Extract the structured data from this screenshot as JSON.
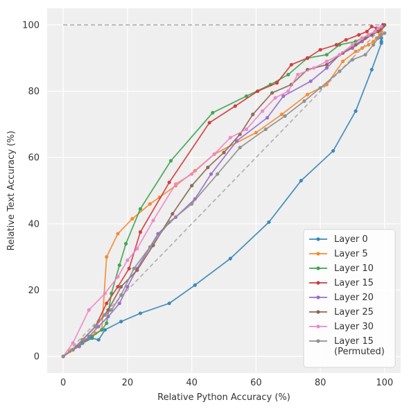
{
  "chart_data": {
    "type": "line",
    "xlabel": "Relative Python Accuracy (%)",
    "ylabel": "Relative Text Accuracy (%)",
    "xlim": [
      -5,
      105
    ],
    "ylim": [
      -5,
      105
    ],
    "xticks": [
      0,
      20,
      40,
      60,
      80,
      100
    ],
    "yticks": [
      0,
      20,
      40,
      60,
      80,
      100
    ],
    "grid": true,
    "legend_position": "bottom-right",
    "reference_lines": [
      {
        "style": "dashed",
        "color": "#b3b3b3",
        "x": [
          0,
          100
        ],
        "y": [
          100,
          100
        ]
      },
      {
        "style": "dashed",
        "color": "#b3b3b3",
        "x": [
          0,
          100
        ],
        "y": [
          0,
          100
        ]
      }
    ],
    "series": [
      {
        "name": "Layer 0",
        "color": "#3a86b8",
        "x": [
          0,
          3,
          6,
          9,
          11,
          13,
          18,
          24,
          33,
          41,
          52,
          64,
          74,
          84,
          91,
          96,
          99,
          99,
          99
        ],
        "y": [
          0,
          2,
          4,
          5.5,
          5,
          8,
          10.5,
          13,
          16,
          21.5,
          29.5,
          40.5,
          53,
          62,
          74,
          86.5,
          94.5,
          95,
          96
        ]
      },
      {
        "name": "Layer 5",
        "color": "#f5892e",
        "x": [
          0,
          2,
          4,
          7,
          10,
          12,
          13.5,
          17,
          21.5,
          27,
          30,
          35,
          41,
          47,
          60,
          68,
          76,
          82,
          87,
          91,
          93,
          95,
          96.5,
          97.5,
          98.5,
          99
        ],
        "y": [
          0,
          1.5,
          3,
          5,
          7,
          8,
          30,
          37,
          41.5,
          46,
          48,
          51.5,
          56,
          61,
          67.5,
          73,
          79,
          82,
          89,
          92,
          93,
          94,
          95,
          96,
          97,
          98
        ]
      },
      {
        "name": "Layer 10",
        "color": "#3fa34d",
        "x": [
          0,
          3,
          6,
          9,
          12,
          13.5,
          15,
          17.5,
          19.5,
          24,
          33.5,
          46.5,
          57,
          64.5,
          70,
          76,
          82,
          86,
          91,
          95,
          97,
          99,
          99.5
        ],
        "y": [
          0,
          2,
          4,
          6,
          8,
          10,
          19,
          27.5,
          34,
          44.5,
          59,
          73.5,
          78.5,
          82,
          85,
          90,
          91,
          94,
          95,
          97,
          98,
          99,
          100
        ]
      },
      {
        "name": "Layer 15",
        "color": "#d13b3b",
        "x": [
          0,
          3,
          6,
          10,
          13.5,
          17,
          20.5,
          24,
          33,
          45.5,
          53.5,
          60.5,
          66.5,
          71,
          76,
          80,
          85,
          88,
          92,
          94.5,
          96,
          97.5,
          98.5,
          99.5
        ],
        "y": [
          0,
          2,
          5,
          9,
          16,
          21,
          26.5,
          37.5,
          52.5,
          70.5,
          75.5,
          80,
          82.5,
          88,
          90,
          92.5,
          94,
          95.5,
          97,
          98,
          99.5,
          99,
          98.5,
          100
        ]
      },
      {
        "name": "Layer 20",
        "color": "#9b6bc9",
        "x": [
          0,
          3,
          5,
          8,
          11,
          14,
          17.5,
          20,
          23,
          29.5,
          35,
          41,
          46,
          54,
          63.5,
          68.5,
          77,
          82,
          86,
          90,
          93,
          96,
          98,
          99,
          99.5
        ],
        "y": [
          0,
          2,
          3,
          6,
          9,
          12,
          16,
          21,
          26.5,
          37,
          42,
          47.5,
          55,
          65,
          72,
          78.5,
          83,
          87,
          91,
          93,
          95,
          97,
          98,
          99,
          99.5
        ]
      },
      {
        "name": "Layer 25",
        "color": "#8c6654",
        "x": [
          0,
          3,
          6,
          10,
          14,
          18,
          23,
          28,
          34,
          40,
          45,
          50,
          55,
          59,
          65,
          71,
          76,
          82,
          87,
          91,
          94,
          96,
          98,
          99,
          99.5,
          100
        ],
        "y": [
          0,
          2,
          5,
          9,
          14,
          21,
          26,
          33.5,
          43,
          51.5,
          57,
          61.5,
          67,
          73,
          79.5,
          82,
          86.5,
          88,
          91.5,
          94,
          96,
          97,
          98,
          99,
          99.5,
          100
        ]
      },
      {
        "name": "Layer 30",
        "color": "#ea88c8",
        "x": [
          0,
          3,
          8,
          13,
          17,
          20,
          23,
          28,
          35,
          40,
          47,
          52,
          57,
          62,
          66,
          70,
          73,
          78,
          82,
          86,
          90,
          93,
          95,
          97,
          98,
          99
        ],
        "y": [
          0,
          4,
          14,
          19,
          24,
          29,
          32.5,
          41,
          52,
          55,
          61,
          66,
          68.5,
          74,
          78,
          80,
          85,
          87,
          89,
          91,
          94,
          96,
          97,
          98,
          99,
          99.5
        ]
      },
      {
        "name": "Layer 15\n(Permuted)",
        "color": "#8f8f8f",
        "x": [
          0,
          3,
          6,
          10,
          13,
          15,
          18,
          22,
          27,
          33,
          40,
          48,
          55,
          63,
          69,
          75,
          80,
          86,
          90,
          94,
          96.5,
          98,
          99,
          100
        ],
        "y": [
          0,
          2,
          5,
          9,
          12.5,
          14,
          18.5,
          26.5,
          33,
          40.5,
          46,
          55,
          63,
          68.5,
          72.5,
          77,
          81,
          86,
          89.5,
          91,
          94,
          96,
          97,
          97.5
        ]
      }
    ]
  }
}
